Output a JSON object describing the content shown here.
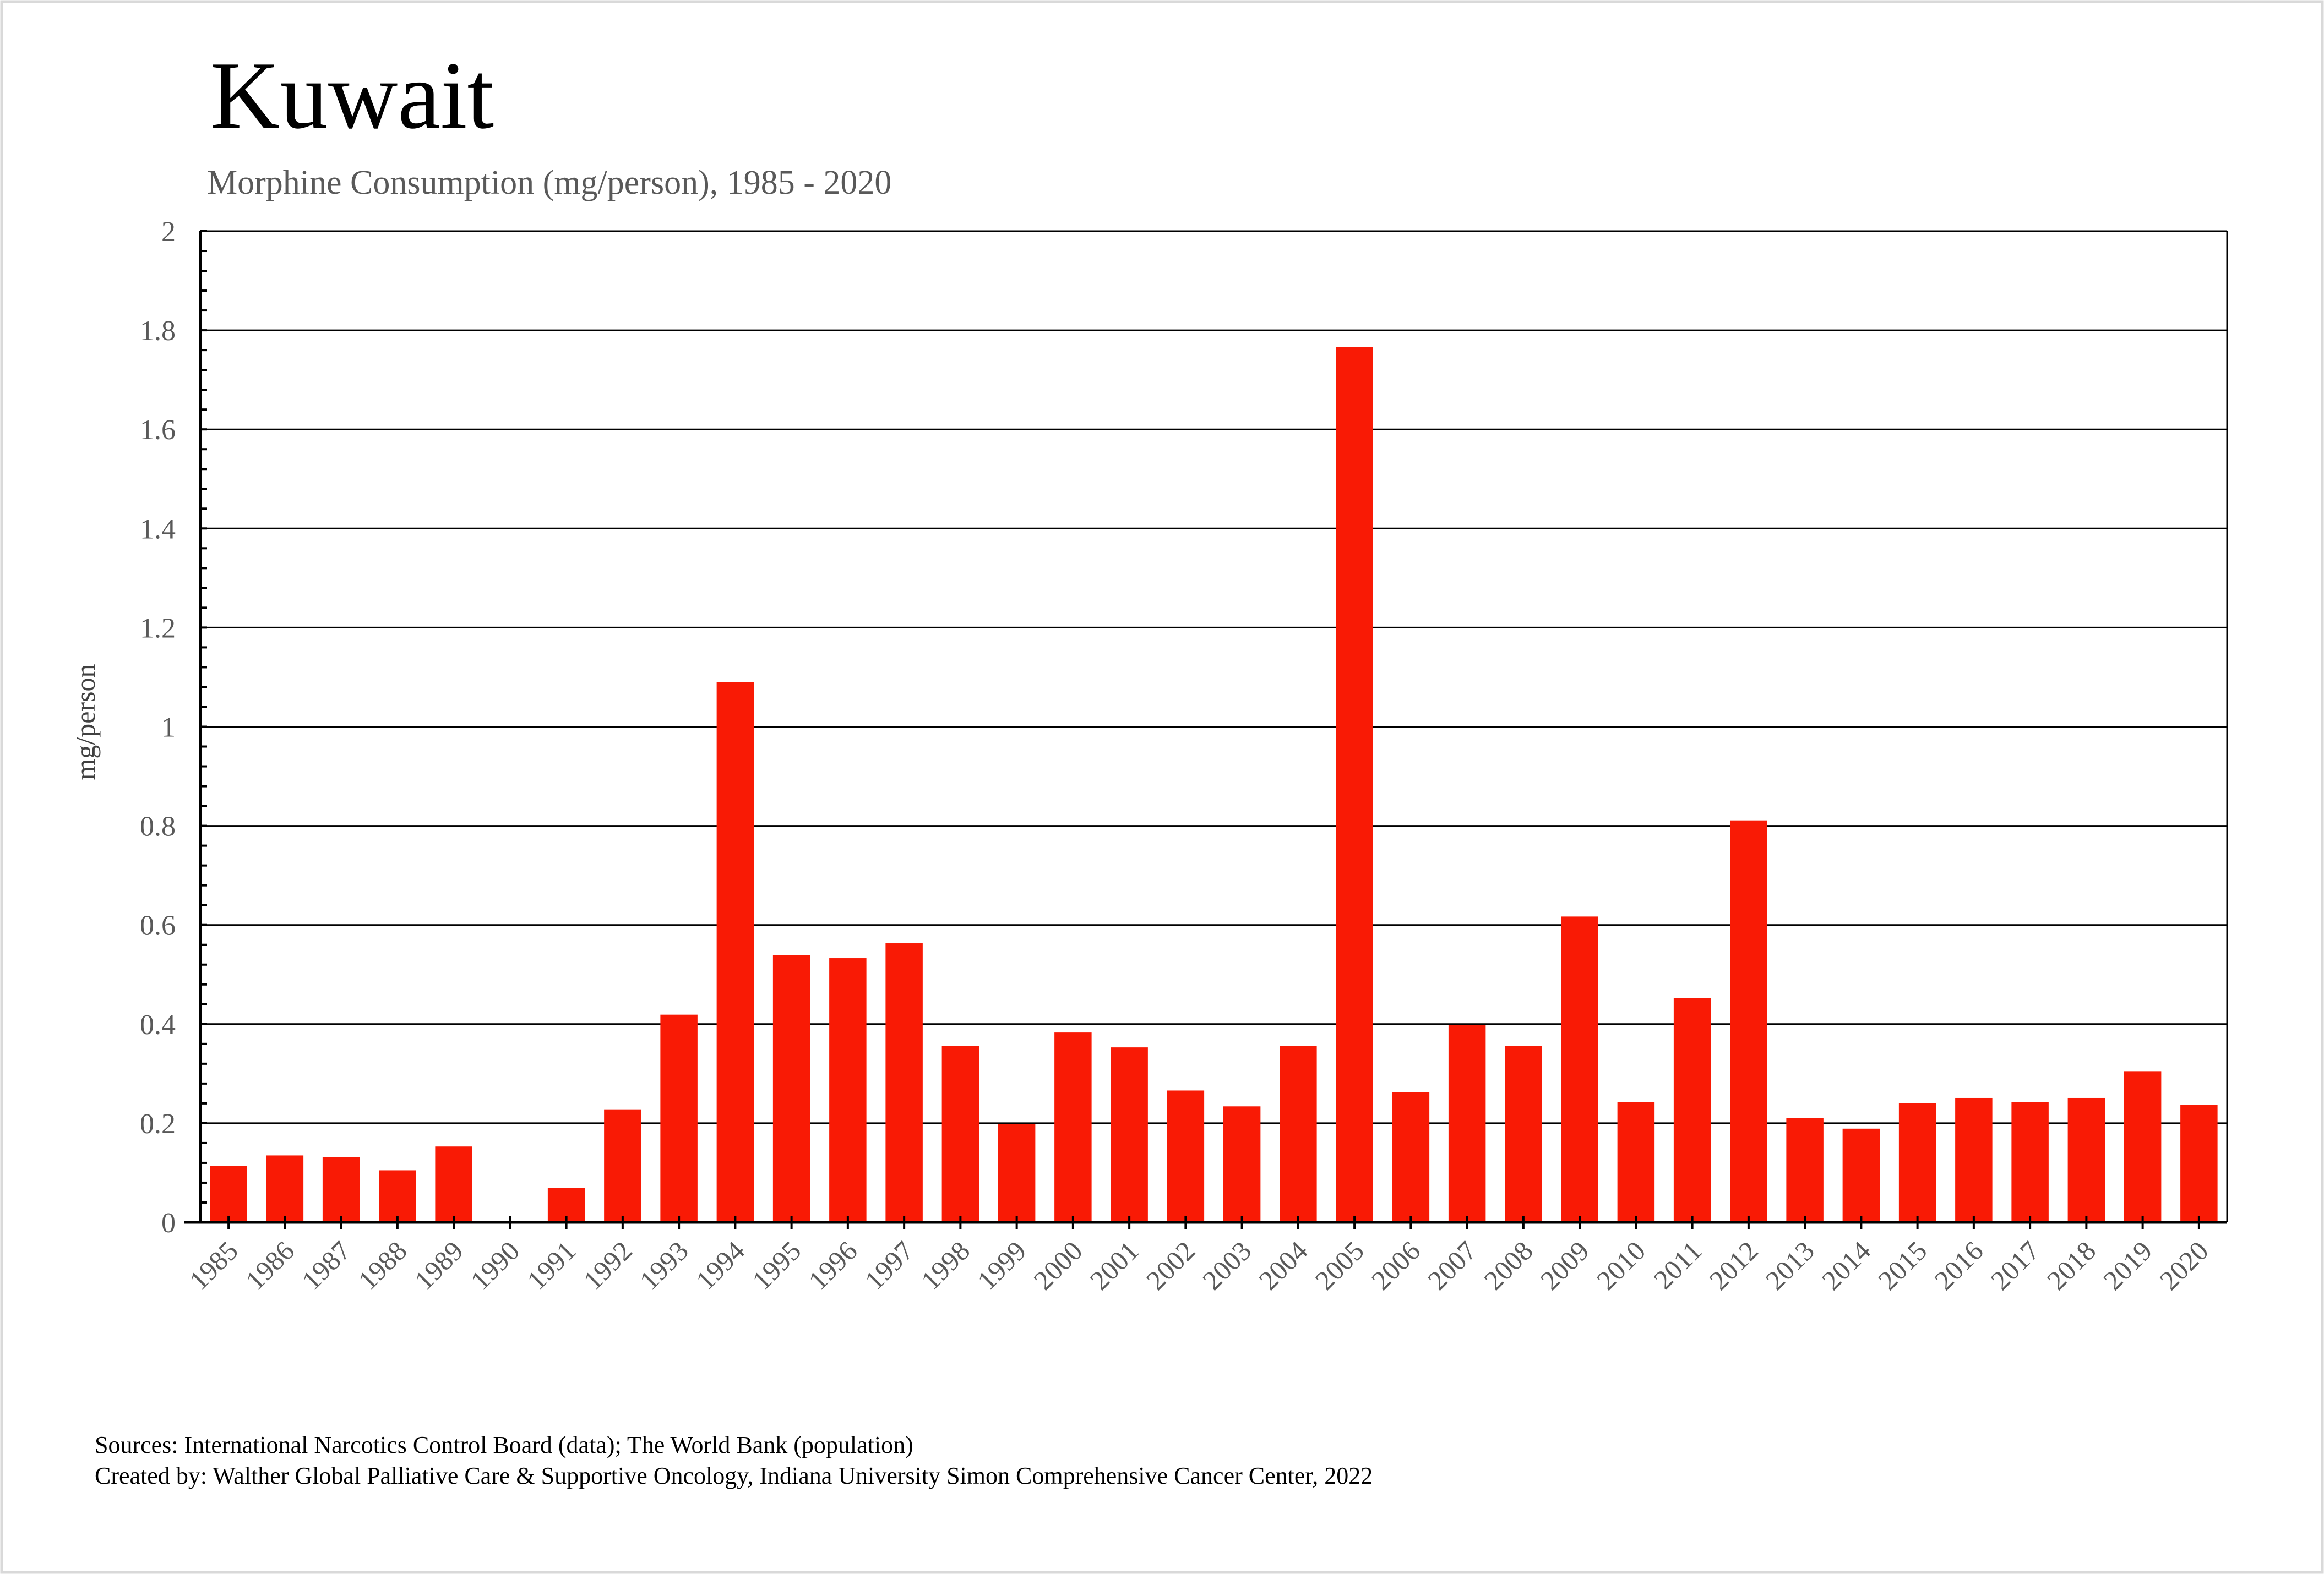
{
  "chart_data": {
    "type": "bar",
    "title": "Kuwait",
    "subtitle": "Morphine Consumption (mg/person), 1985 - 2020",
    "xlabel": "",
    "ylabel": "mg/person",
    "ylim": [
      0,
      2
    ],
    "yticks": [
      "0",
      "0.2",
      "0.4",
      "0.6",
      "0.8",
      "1",
      "1.2",
      "1.4",
      "1.6",
      "1.8",
      "2"
    ],
    "grid": true,
    "bar_color": "#f91a05",
    "categories": [
      "1985",
      "1986",
      "1987",
      "1988",
      "1989",
      "1990",
      "1991",
      "1992",
      "1993",
      "1994",
      "1995",
      "1996",
      "1997",
      "1998",
      "1999",
      "2000",
      "2001",
      "2002",
      "2003",
      "2004",
      "2005",
      "2006",
      "2007",
      "2008",
      "2009",
      "2010",
      "2011",
      "2012",
      "2013",
      "2014",
      "2015",
      "2016",
      "2017",
      "2018",
      "2019",
      "2020"
    ],
    "values": [
      0.114,
      0.135,
      0.132,
      0.105,
      0.153,
      0,
      0.069,
      0.228,
      0.419,
      1.09,
      0.539,
      0.533,
      0.563,
      0.356,
      0.198,
      0.383,
      0.353,
      0.266,
      0.234,
      0.356,
      1.766,
      0.263,
      0.398,
      0.356,
      0.617,
      0.243,
      0.452,
      0.811,
      0.21,
      0.189,
      0.24,
      0.251,
      0.243,
      0.251,
      0.305,
      0.237
    ]
  },
  "footer": {
    "sources": "Sources: International Narcotics Control Board (data); The World Bank (population)",
    "created_by": "Created by: Walther  Global Palliative Care & Supportive Oncology, Indiana University Simon Comprehensive Cancer Center, 2022"
  }
}
